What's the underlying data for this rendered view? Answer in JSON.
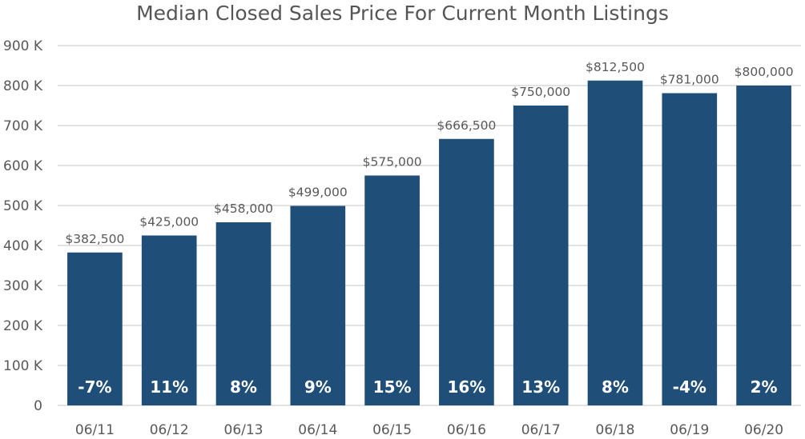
{
  "chart_data": {
    "type": "bar",
    "title": "Median Closed Sales Price For Current Month Listings",
    "xlabel": "",
    "ylabel": "",
    "categories": [
      "06/11",
      "06/12",
      "06/13",
      "06/14",
      "06/15",
      "06/16",
      "06/17",
      "06/18",
      "06/19",
      "06/20"
    ],
    "values": [
      382500,
      425000,
      458000,
      499000,
      575000,
      666500,
      750000,
      812500,
      781000,
      800000
    ],
    "value_labels": [
      "$382,500",
      "$425,000",
      "$458,000",
      "$499,000",
      "$575,000",
      "$666,500",
      "$750,000",
      "$812,500",
      "$781,000",
      "$800,000"
    ],
    "change_labels": [
      "-7%",
      "11%",
      "8%",
      "9%",
      "15%",
      "16%",
      "13%",
      "8%",
      "-4%",
      "2%"
    ],
    "ylim": [
      0,
      900000
    ],
    "y_ticks": [
      0,
      100000,
      200000,
      300000,
      400000,
      500000,
      600000,
      700000,
      800000,
      900000
    ],
    "y_tick_labels": [
      "0",
      "100 K",
      "200 K",
      "300 K",
      "400 K",
      "500 K",
      "600 K",
      "700 K",
      "800 K",
      "900 K"
    ],
    "grid": true,
    "legend": "none",
    "colors": {
      "bar": "#1f4e79",
      "grid": "#d9d9d9",
      "axis_text": "#595959",
      "value_label": "#595959",
      "change_label": "#ffffff"
    }
  }
}
